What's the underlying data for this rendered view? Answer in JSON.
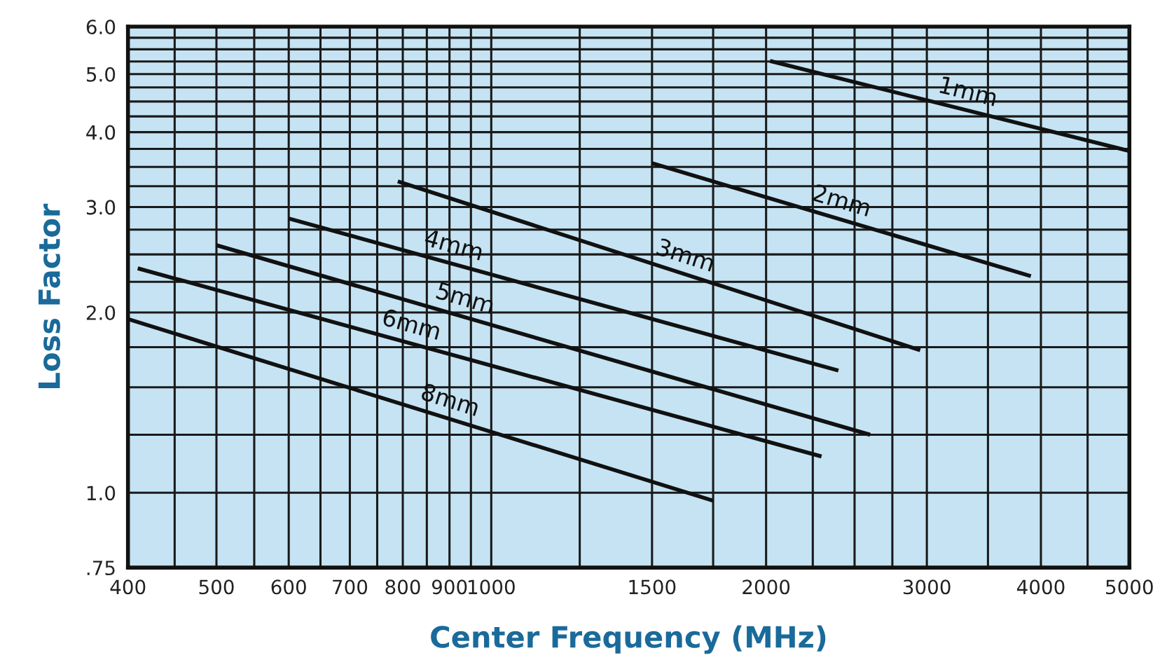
{
  "chart_data": {
    "type": "line",
    "xlabel": "Center Frequency (MHz)",
    "ylabel": "Loss Factor",
    "log": "xy",
    "grid": true,
    "marker": "none",
    "line_style": "solid",
    "legend": false,
    "xlim": [
      400,
      5000
    ],
    "ylim": [
      0.75,
      6.0
    ],
    "xticks": [
      400,
      {
        "value": 450,
        "label": null
      },
      500,
      {
        "value": 550,
        "label": null
      },
      600,
      {
        "value": 650,
        "label": null
      },
      700,
      {
        "value": 750,
        "label": null
      },
      800,
      {
        "value": 850,
        "label": null
      },
      900,
      {
        "value": 950,
        "label": null
      },
      1000,
      {
        "value": 1250,
        "label": null
      },
      1500,
      {
        "value": 1750,
        "label": null
      },
      2000,
      {
        "value": 2250,
        "label": null
      },
      {
        "value": 2500,
        "label": null
      },
      {
        "value": 2750,
        "label": null
      },
      3000,
      {
        "value": 3500,
        "label": null
      },
      4000,
      {
        "value": 4500,
        "label": null
      },
      5000
    ],
    "yticks": [
      {
        "value": 0.75,
        "label": ".75"
      },
      {
        "value": 1.0,
        "label": "1.0"
      },
      {
        "value": 1.25,
        "label": null
      },
      {
        "value": 1.5,
        "label": null
      },
      {
        "value": 1.75,
        "label": null
      },
      {
        "value": 2.0,
        "label": "2.0"
      },
      {
        "value": 2.25,
        "label": null
      },
      {
        "value": 2.5,
        "label": null
      },
      {
        "value": 2.75,
        "label": null
      },
      {
        "value": 3.0,
        "label": "3.0"
      },
      {
        "value": 3.25,
        "label": null
      },
      {
        "value": 3.5,
        "label": null
      },
      {
        "value": 3.75,
        "label": null
      },
      {
        "value": 4.0,
        "label": "4.0"
      },
      {
        "value": 4.25,
        "label": null
      },
      {
        "value": 4.5,
        "label": null
      },
      {
        "value": 4.75,
        "label": null
      },
      {
        "value": 5.0,
        "label": "5.0"
      },
      {
        "value": 5.25,
        "label": null
      },
      {
        "value": 5.5,
        "label": null
      },
      {
        "value": 5.75,
        "label": null
      },
      {
        "value": 6.0,
        "label": "6.0"
      }
    ],
    "series": [
      {
        "name": "1mm",
        "color": "#111111",
        "x": [
          2020,
          5000
        ],
        "values": [
          5.26,
          3.72
        ]
      },
      {
        "name": "2mm",
        "color": "#111111",
        "x": [
          1500,
          3900
        ],
        "values": [
          3.55,
          2.3
        ]
      },
      {
        "name": "3mm",
        "color": "#111111",
        "x": [
          790,
          2950
        ],
        "values": [
          3.31,
          1.73
        ]
      },
      {
        "name": "4mm",
        "color": "#111111",
        "x": [
          600,
          2400
        ],
        "values": [
          2.87,
          1.6
        ]
      },
      {
        "name": "5mm",
        "color": "#111111",
        "x": [
          500,
          2600
        ],
        "values": [
          2.59,
          1.25
        ]
      },
      {
        "name": "6mm",
        "color": "#111111",
        "x": [
          410,
          2300
        ],
        "values": [
          2.37,
          1.15
        ]
      },
      {
        "name": "8mm",
        "color": "#111111",
        "x": [
          400,
          1750
        ],
        "values": [
          1.95,
          0.97
        ]
      }
    ]
  }
}
